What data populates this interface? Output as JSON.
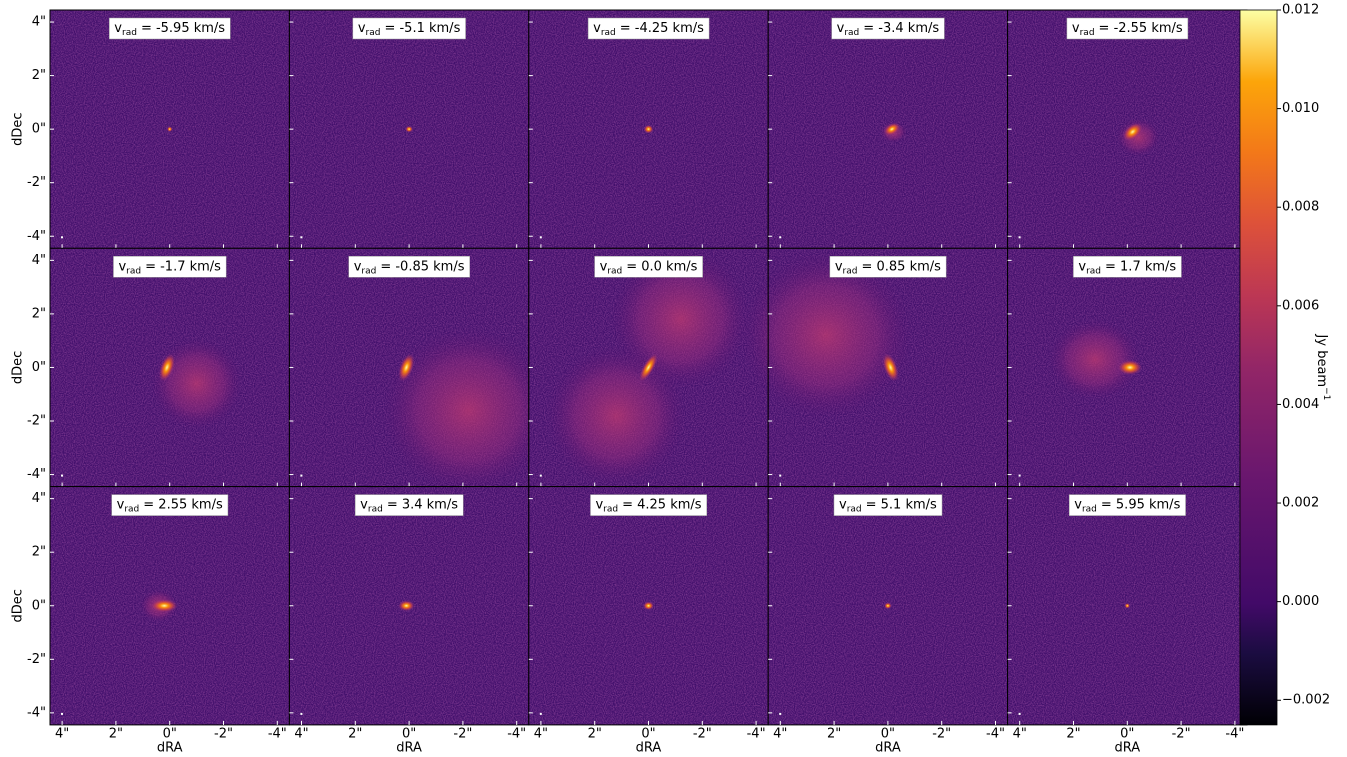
{
  "chart_data": {
    "type": "channel-map",
    "x_label": "dRA",
    "y_label": "dDec",
    "label_symbol": "v",
    "label_subscript": "rad",
    "panels": [
      {
        "label": "= -5.95 km/s"
      },
      {
        "label": "= -5.1 km/s"
      },
      {
        "label": "= -4.25 km/s"
      },
      {
        "label": "= -3.4 km/s"
      },
      {
        "label": "= -2.55 km/s"
      },
      {
        "label": "= -1.7 km/s"
      },
      {
        "label": "= -0.85 km/s"
      },
      {
        "label": "= 0.0 km/s"
      },
      {
        "label": "= 0.85 km/s"
      },
      {
        "label": "= 1.7 km/s"
      },
      {
        "label": "= 2.55 km/s"
      },
      {
        "label": "= 3.4 km/s"
      },
      {
        "label": "= 4.25 km/s"
      },
      {
        "label": "= 5.1 km/s"
      },
      {
        "label": "= 5.95 km/s"
      }
    ],
    "xlim": [
      4.45,
      -4.45
    ],
    "xticks": [
      {
        "value": 4,
        "label": "4\""
      },
      {
        "value": 2,
        "label": "2\""
      },
      {
        "value": 0,
        "label": "0\""
      },
      {
        "value": -2,
        "label": "-2\""
      },
      {
        "value": -4,
        "label": "-4\""
      }
    ],
    "ylim": [
      -4.45,
      4.45
    ],
    "yticks": [
      {
        "value": 4,
        "label": "4\""
      },
      {
        "value": 2,
        "label": "2\""
      },
      {
        "value": 0,
        "label": "0\""
      },
      {
        "value": -2,
        "label": "-2\""
      },
      {
        "value": -4,
        "label": "-4\""
      }
    ],
    "colorbar_label": "Jy beam",
    "colorbar_label_exponent": "−1",
    "clim": [
      -0.0025,
      0.012
    ],
    "colorbar_ticks": [
      0.012,
      {
        "value": 0.01,
        "label": "0.010"
      },
      0.008,
      0.006,
      0.004,
      0.002,
      {
        "value": 0,
        "label": "0.000"
      },
      {
        "value": -0.002,
        "label": "−0.002"
      }
    ]
  }
}
